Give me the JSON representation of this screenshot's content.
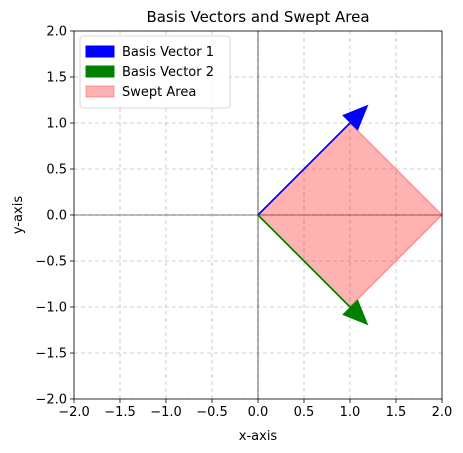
{
  "chart_data": {
    "type": "vector-plot",
    "title": "Basis Vectors and Swept Area",
    "xlabel": "x-axis",
    "ylabel": "y-axis",
    "xlim": [
      -2.0,
      2.0
    ],
    "ylim": [
      -2.0,
      2.0
    ],
    "xticks": [
      -2.0,
      -1.5,
      -1.0,
      -0.5,
      0.0,
      0.5,
      1.0,
      1.5,
      2.0
    ],
    "yticks": [
      -2.0,
      -1.5,
      -1.0,
      -0.5,
      0.0,
      0.5,
      1.0,
      1.5,
      2.0
    ],
    "xtick_labels": [
      "−2.0",
      "−1.5",
      "−1.0",
      "−0.5",
      "0.0",
      "0.5",
      "1.0",
      "1.5",
      "2.0"
    ],
    "ytick_labels": [
      "−2.0",
      "−1.5",
      "−1.0",
      "−0.5",
      "0.0",
      "0.5",
      "1.0",
      "1.5",
      "2.0"
    ],
    "grid": true,
    "grid_style": "dashed",
    "legend_position": "upper-left",
    "vectors": [
      {
        "name": "Basis Vector 1",
        "origin": [
          0,
          0
        ],
        "end": [
          1,
          1
        ],
        "color": "#0000ff"
      },
      {
        "name": "Basis Vector 2",
        "origin": [
          0,
          0
        ],
        "end": [
          1,
          -1
        ],
        "color": "#008000"
      }
    ],
    "swept_area": {
      "name": "Swept Area",
      "vertices": [
        [
          0,
          0
        ],
        [
          1,
          1
        ],
        [
          2,
          0
        ],
        [
          1,
          -1
        ]
      ],
      "color": "#ff0000",
      "alpha": 0.3
    }
  }
}
